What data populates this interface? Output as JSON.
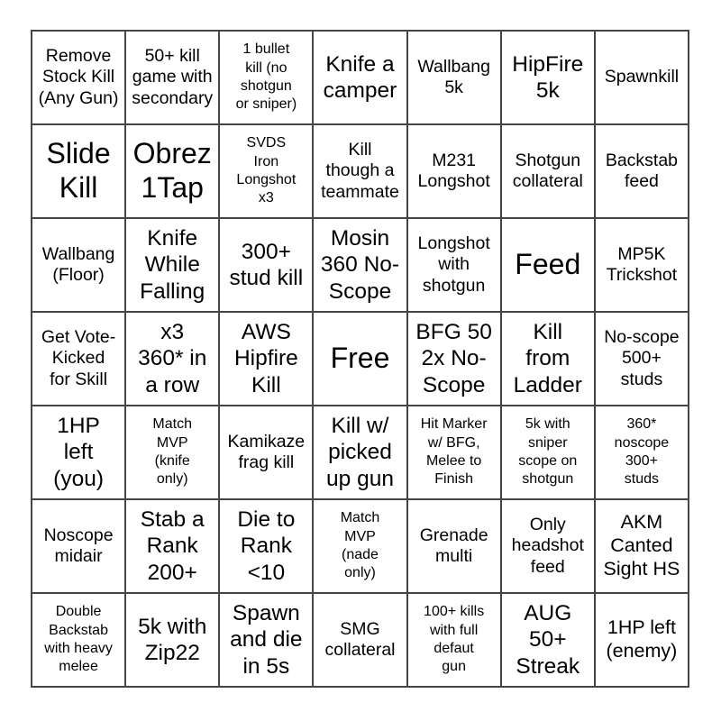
{
  "colors": {
    "page_background": "#ffffff",
    "cell_background": "#ffffff",
    "grid_line": "#454545",
    "text": "#000000"
  },
  "bingo_card": {
    "rows": 7,
    "cols": 7,
    "free_space_label": "Free",
    "cells": [
      {
        "label": "Remove\nStock Kill\n(Any Gun)",
        "size": "m"
      },
      {
        "label": "50+ kill\ngame with\nsecondary",
        "size": "m"
      },
      {
        "label": "1 bullet\nkill (no\nshotgun\nor sniper)",
        "size": "s"
      },
      {
        "label": "Knife a\ncamper",
        "size": "l"
      },
      {
        "label": "Wallbang\n5k",
        "size": "m"
      },
      {
        "label": "HipFire\n5k",
        "size": "l"
      },
      {
        "label": "Spawnkill",
        "size": "m"
      },
      {
        "label": "Slide\nKill",
        "size": "xl"
      },
      {
        "label": "Obrez\n1Tap",
        "size": "xl"
      },
      {
        "label": "SVDS\nIron\nLongshot\nx3",
        "size": "s"
      },
      {
        "label": "Kill\nthough a\nteammate",
        "size": "m"
      },
      {
        "label": "M231\nLongshot",
        "size": "m"
      },
      {
        "label": "Shotgun\ncollateral",
        "size": "m"
      },
      {
        "label": "Backstab\nfeed",
        "size": "m"
      },
      {
        "label": "Wallbang\n(Floor)",
        "size": "m"
      },
      {
        "label": "Knife\nWhile\nFalling",
        "size": "l"
      },
      {
        "label": "300+\nstud kill",
        "size": "l"
      },
      {
        "label": "Mosin\n360 No-\nScope",
        "size": "l"
      },
      {
        "label": "Longshot\nwith\nshotgun",
        "size": "m"
      },
      {
        "label": "Feed",
        "size": "xl"
      },
      {
        "label": "MP5K\nTrickshot",
        "size": "m"
      },
      {
        "label": "Get Vote-\nKicked\nfor Skill",
        "size": "m"
      },
      {
        "label": "x3\n360* in\na row",
        "size": "l"
      },
      {
        "label": "AWS\nHipfire\nKill",
        "size": "l"
      },
      {
        "label": "Free",
        "size": "xl"
      },
      {
        "label": "BFG 50\n2x No-\nScope",
        "size": "l"
      },
      {
        "label": "Kill\nfrom\nLadder",
        "size": "l"
      },
      {
        "label": "No-scope\n500+\nstuds",
        "size": "m"
      },
      {
        "label": "1HP\nleft\n(you)",
        "size": "l"
      },
      {
        "label": "Match\nMVP\n(knife\nonly)",
        "size": "s"
      },
      {
        "label": "Kamikaze\nfrag kill",
        "size": "m"
      },
      {
        "label": "Kill w/\npicked\nup gun",
        "size": "l"
      },
      {
        "label": "Hit Marker\nw/ BFG,\nMelee to\nFinish",
        "size": "s"
      },
      {
        "label": "5k with\nsniper\nscope on\nshotgun",
        "size": "s"
      },
      {
        "label": "360*\nnoscope\n300+\nstuds",
        "size": "s"
      },
      {
        "label": "Noscope\nmidair",
        "size": "m"
      },
      {
        "label": "Stab a\nRank\n200+",
        "size": "l"
      },
      {
        "label": "Die to\nRank\n<10",
        "size": "l"
      },
      {
        "label": "Match\nMVP\n(nade\nonly)",
        "size": "s"
      },
      {
        "label": "Grenade\nmulti",
        "size": "m"
      },
      {
        "label": "Only\nheadshot\nfeed",
        "size": "m"
      },
      {
        "label": "AKM\nCanted\nSight HS",
        "size": "ml"
      },
      {
        "label": "Double\nBackstab\nwith heavy\nmelee",
        "size": "s"
      },
      {
        "label": "5k with\nZip22",
        "size": "l"
      },
      {
        "label": "Spawn\nand die\nin 5s",
        "size": "l"
      },
      {
        "label": "SMG\ncollateral",
        "size": "m"
      },
      {
        "label": "100+ kills\nwith full\ndefaut\ngun",
        "size": "s"
      },
      {
        "label": "AUG\n50+\nStreak",
        "size": "l"
      },
      {
        "label": "1HP left\n(enemy)",
        "size": "ml"
      }
    ]
  }
}
